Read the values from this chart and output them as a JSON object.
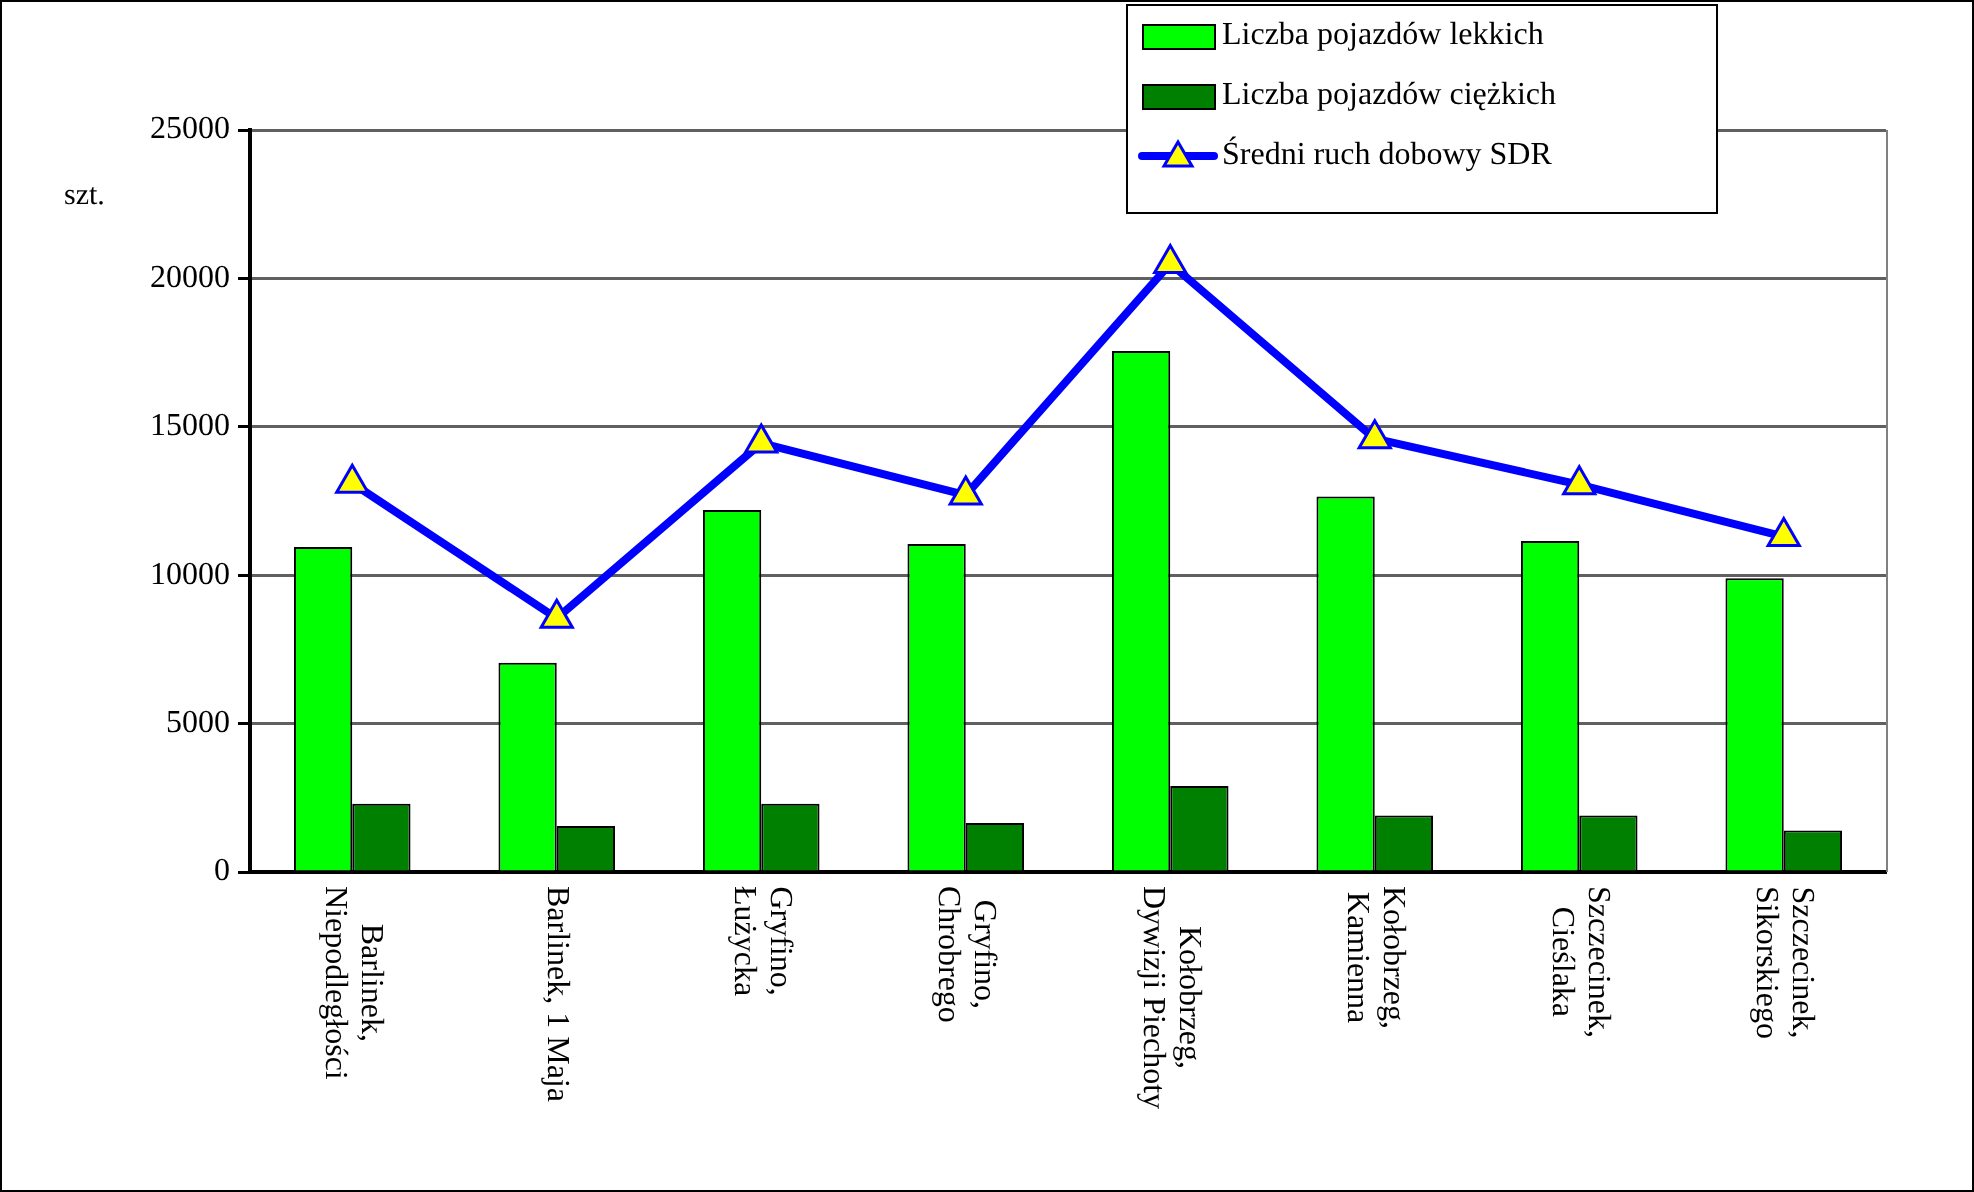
{
  "chart_data": {
    "type": "bar",
    "ylabel": "szt.",
    "categories": [
      "Barlinek, Niepodległości",
      "Barlinek, 1 Maja",
      "Gryfino, Łużycka",
      "Gryfino, Chrobrego",
      "Kołobrzeg, Dywizji Piechoty",
      "Kołobrzeg, Kamienna",
      "Szczecinek, Cieślaka",
      "Szczecinek, Sikorskiego"
    ],
    "series": [
      {
        "name": "Liczba pojazdów lekkich",
        "color": "#00ff00",
        "values": [
          10950,
          7050,
          12200,
          11050,
          17550,
          12650,
          11150,
          9900
        ]
      },
      {
        "name": "Liczba pojazdów ciężkich",
        "color": "#008000",
        "values": [
          2300,
          1550,
          2300,
          1650,
          2900,
          1900,
          1900,
          1400
        ]
      },
      {
        "name": "Średni ruch dobowy SDR",
        "type": "line",
        "color": "#0000ff",
        "marker": "triangle",
        "values": [
          13100,
          8550,
          14450,
          12700,
          20500,
          14600,
          13050,
          11300
        ]
      }
    ],
    "ylim": [
      0,
      25000
    ],
    "yticks": [
      0,
      5000,
      10000,
      15000,
      20000,
      25000
    ],
    "grid": "y",
    "legend": "top right"
  }
}
